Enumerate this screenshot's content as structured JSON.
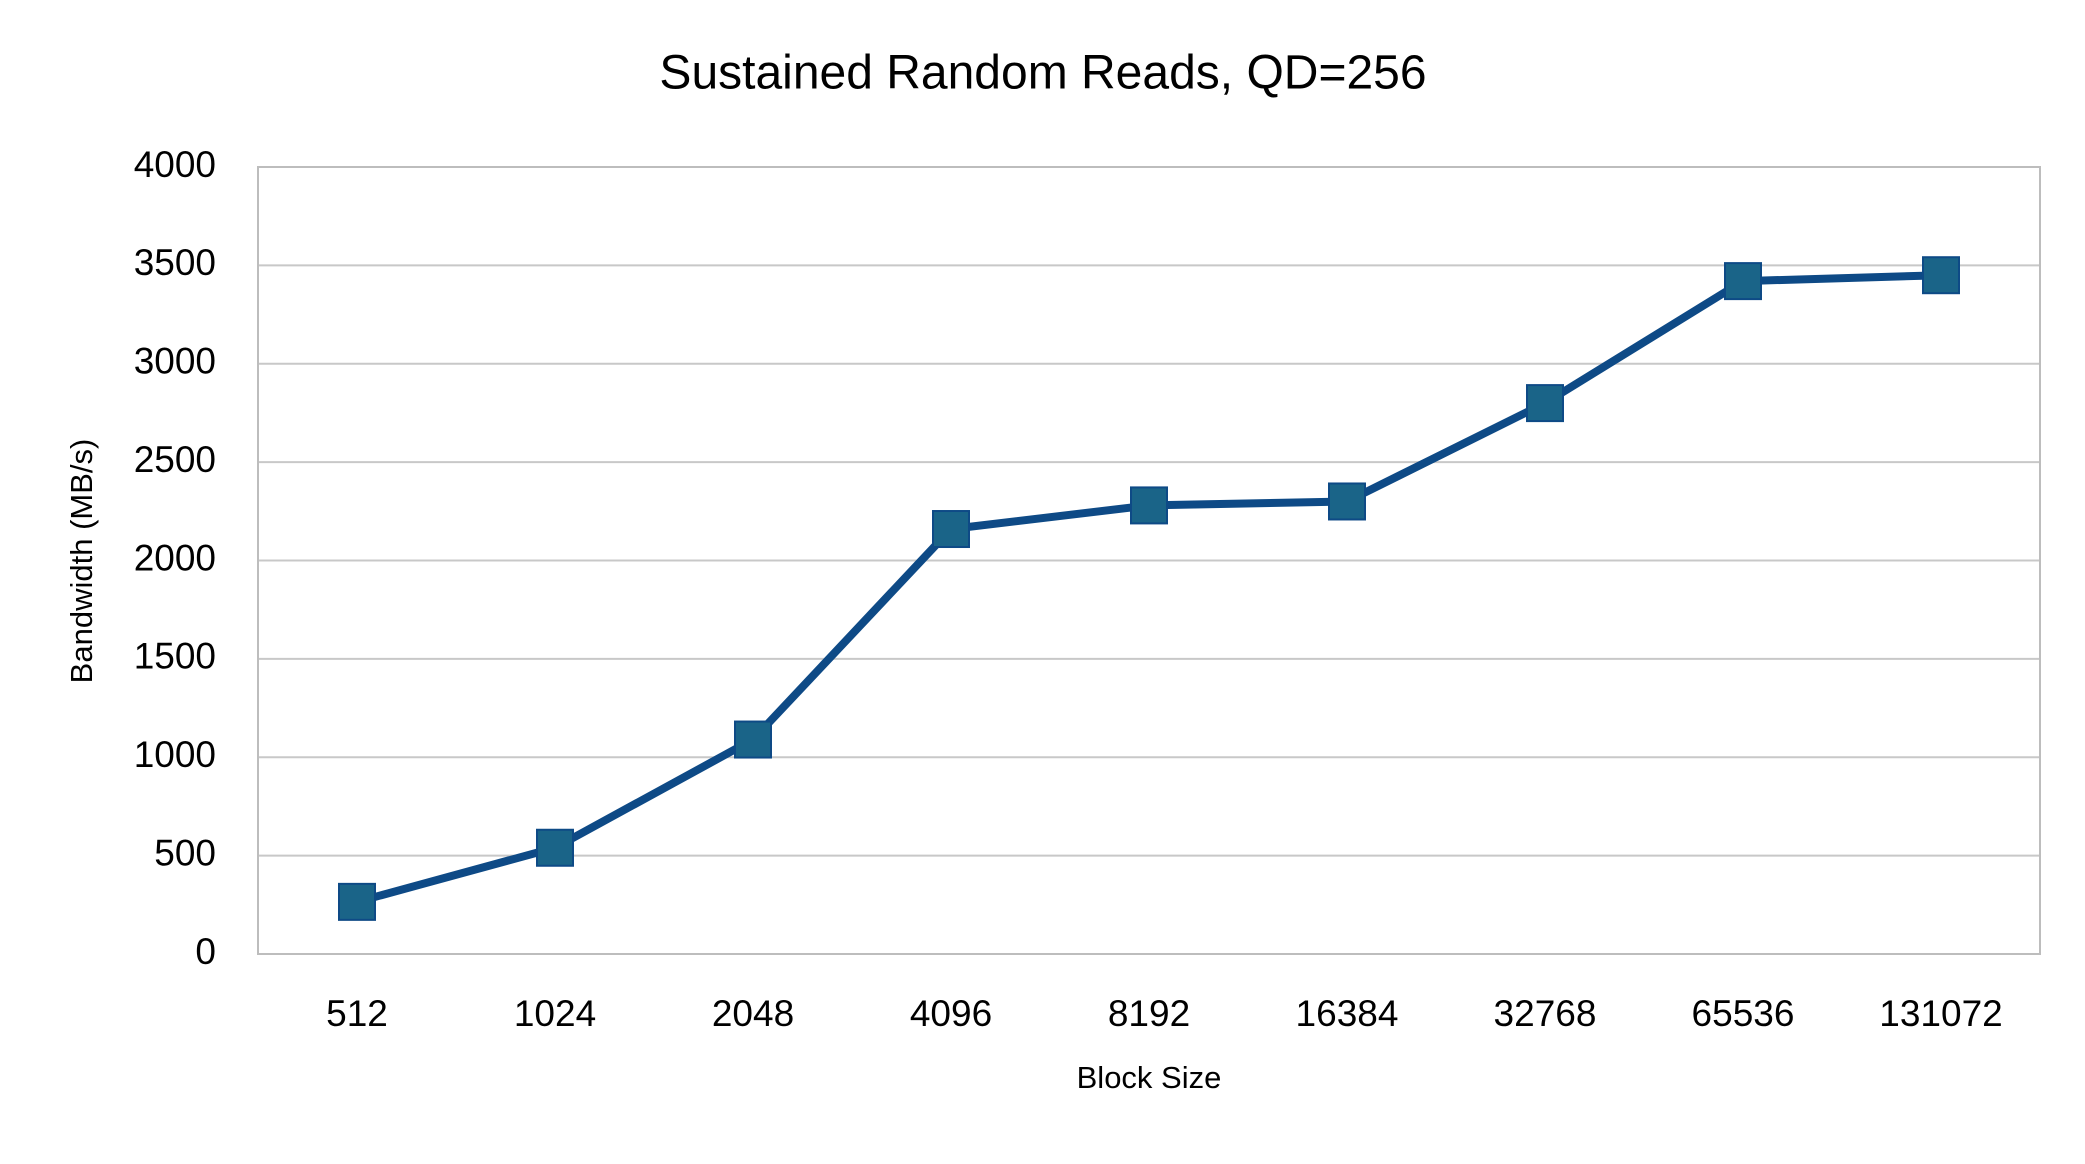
{
  "chart_data": {
    "type": "line",
    "title": "Sustained Random Reads, QD=256",
    "x_label": "Block Size",
    "y_label": "Bandwidth (MB/s)",
    "categories": [
      "512",
      "1024",
      "2048",
      "4096",
      "8192",
      "16384",
      "32768",
      "65536",
      "131072"
    ],
    "values": [
      265,
      540,
      1090,
      2160,
      2280,
      2300,
      2800,
      3420,
      3450
    ],
    "color": "#0e4a86",
    "marker_color": "#1a6488",
    "marker": "square",
    "ylim": [
      0,
      4000
    ],
    "yticks": [
      0,
      500,
      1000,
      1500,
      2000,
      2500,
      3000,
      3500,
      4000
    ],
    "grid": true
  }
}
